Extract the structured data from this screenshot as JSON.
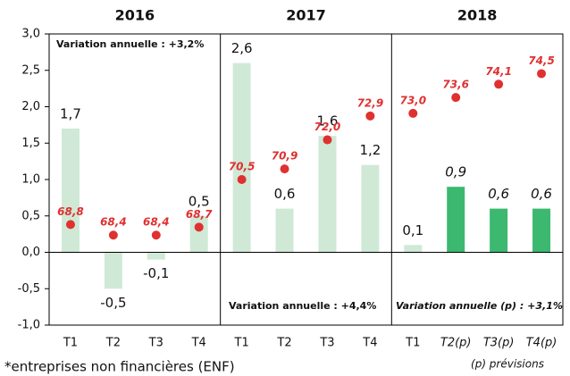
{
  "chart_data": {
    "type": "bar",
    "groups": [
      "2016",
      "2017",
      "2018"
    ],
    "categories": [
      "T1",
      "T2",
      "T3",
      "T4",
      "T1",
      "T2",
      "T3",
      "T4",
      "T1",
      "T2(p)",
      "T3(p)",
      "T4(p)"
    ],
    "series": [
      {
        "type": "bar",
        "values": [
          1.7,
          -0.5,
          -0.1,
          0.5,
          2.6,
          0.6,
          1.6,
          1.2,
          0.1,
          0.9,
          0.6,
          0.6
        ],
        "value_labels": [
          "1,7",
          "-0,5",
          "-0,1",
          "0,5",
          "2,6",
          "0,6",
          "1,6",
          "1,2",
          "0,1",
          "0,9",
          "0,6",
          "0,6"
        ],
        "colors": [
          "#cfe9d6",
          "#cfe9d6",
          "#cfe9d6",
          "#cfe9d6",
          "#cfe9d6",
          "#cfe9d6",
          "#cfe9d6",
          "#cfe9d6",
          "#cfe9d6",
          "#3cb870",
          "#3cb870",
          "#3cb870"
        ]
      },
      {
        "type": "scatter",
        "axis": "y2",
        "color": "#e03030",
        "values": [
          68.8,
          68.4,
          68.4,
          68.7,
          70.5,
          70.9,
          72.0,
          72.9,
          73.0,
          73.6,
          74.1,
          74.5
        ],
        "value_labels": [
          "68,8",
          "68,4",
          "68,4",
          "68,7",
          "70,5",
          "70,9",
          "72,0",
          "72,9",
          "73,0",
          "73,6",
          "74,1",
          "74,5"
        ]
      }
    ],
    "ylim": [
      -1,
      3
    ],
    "yticks": [
      {
        "value": -1,
        "label": "-1,0"
      },
      {
        "value": -0.5,
        "label": "-0,5"
      },
      {
        "value": 0,
        "label": "0,0"
      },
      {
        "value": 0.5,
        "label": "0,5"
      },
      {
        "value": 1,
        "label": "1,0"
      },
      {
        "value": 1.5,
        "label": "1,5"
      },
      {
        "value": 2,
        "label": "2,0"
      },
      {
        "value": 2.5,
        "label": "2,5"
      },
      {
        "value": 3,
        "label": "3,0"
      }
    ],
    "y2lim": [
      65,
      76
    ],
    "annotations": [
      "Variation annuelle : +3,2%",
      "Variation annuelle : +4,4%",
      "Variation annuelle (p) : +3,1%"
    ],
    "footnote": "*entreprises non financières (ENF)",
    "note": "(p) prévisions"
  }
}
